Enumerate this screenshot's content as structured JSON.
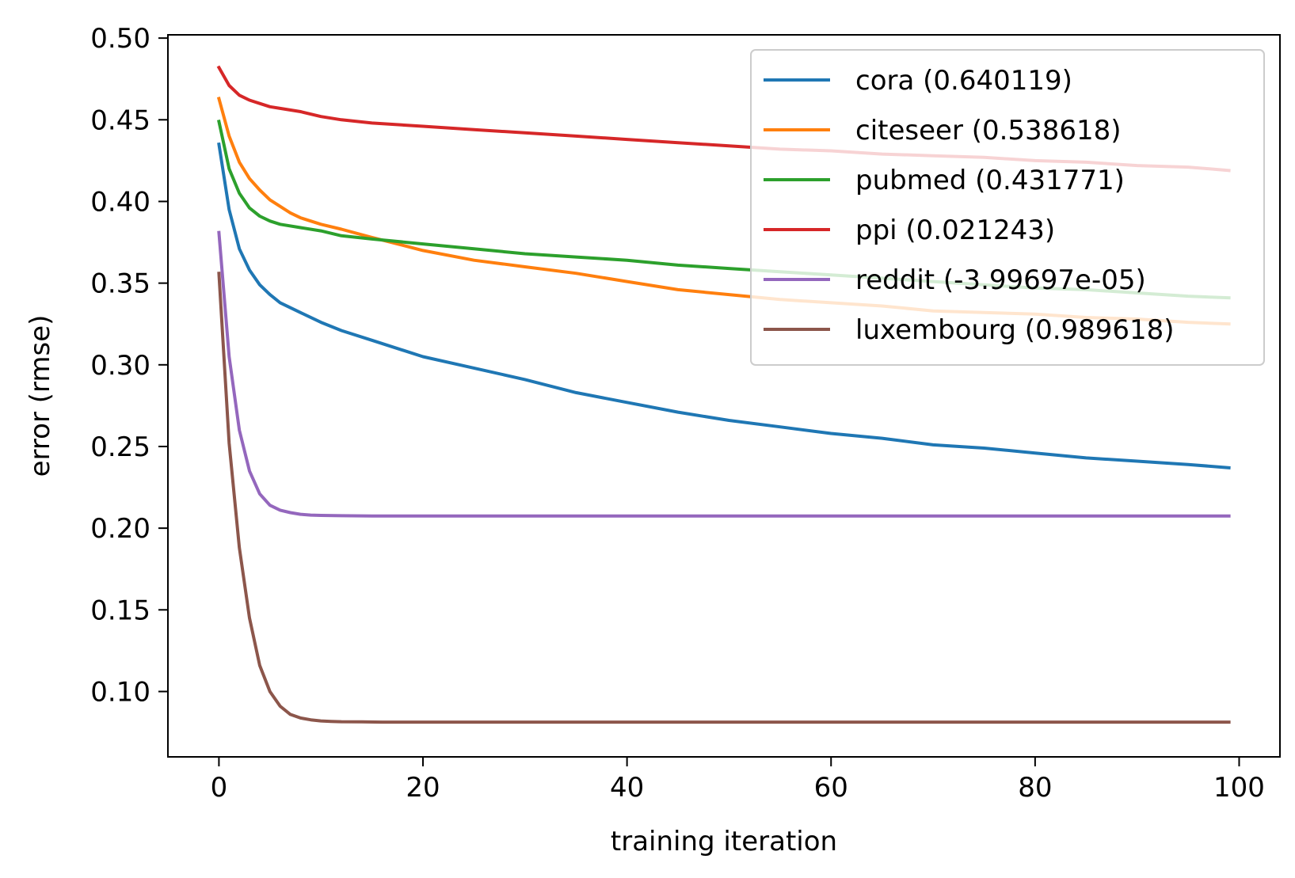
{
  "chart_data": {
    "type": "line",
    "title": "",
    "xlabel": "training iteration",
    "ylabel": "error (rmse)",
    "xlim": [
      -5,
      104
    ],
    "ylim": [
      0.06,
      0.502
    ],
    "xticks": [
      0,
      20,
      40,
      60,
      80,
      100
    ],
    "xtick_labels": [
      "0",
      "20",
      "40",
      "60",
      "80",
      "100"
    ],
    "yticks": [
      0.1,
      0.15,
      0.2,
      0.25,
      0.3,
      0.35,
      0.4,
      0.45,
      0.5
    ],
    "ytick_labels": [
      "0.10",
      "0.15",
      "0.20",
      "0.25",
      "0.30",
      "0.35",
      "0.40",
      "0.45",
      "0.50"
    ],
    "grid": false,
    "legend_position": "top-right",
    "series": [
      {
        "name": "cora (0.640119)",
        "color": "#1f77b4",
        "x": [
          0,
          1,
          2,
          3,
          4,
          5,
          6,
          8,
          10,
          12,
          15,
          20,
          25,
          30,
          35,
          40,
          45,
          50,
          55,
          60,
          65,
          70,
          75,
          80,
          85,
          90,
          95,
          99
        ],
        "y": [
          0.435,
          0.395,
          0.371,
          0.358,
          0.349,
          0.343,
          0.338,
          0.332,
          0.326,
          0.321,
          0.315,
          0.305,
          0.298,
          0.291,
          0.283,
          0.277,
          0.271,
          0.266,
          0.262,
          0.258,
          0.255,
          0.251,
          0.249,
          0.246,
          0.243,
          0.241,
          0.239,
          0.237
        ]
      },
      {
        "name": "citeseer (0.538618)",
        "color": "#ff7f0e",
        "x": [
          0,
          1,
          2,
          3,
          4,
          5,
          6,
          7,
          8,
          10,
          12,
          15,
          20,
          25,
          30,
          35,
          40,
          45,
          50,
          55,
          60,
          65,
          70,
          75,
          80,
          85,
          90,
          95,
          99
        ],
        "y": [
          0.463,
          0.44,
          0.424,
          0.414,
          0.407,
          0.401,
          0.397,
          0.393,
          0.39,
          0.386,
          0.383,
          0.378,
          0.37,
          0.364,
          0.36,
          0.356,
          0.351,
          0.346,
          0.343,
          0.34,
          0.338,
          0.336,
          0.333,
          0.332,
          0.331,
          0.329,
          0.328,
          0.326,
          0.325
        ]
      },
      {
        "name": "pubmed (0.431771)",
        "color": "#2ca02c",
        "x": [
          0,
          1,
          2,
          3,
          4,
          5,
          6,
          8,
          10,
          12,
          15,
          20,
          25,
          30,
          35,
          40,
          45,
          50,
          55,
          60,
          65,
          70,
          75,
          80,
          85,
          90,
          95,
          99
        ],
        "y": [
          0.449,
          0.42,
          0.405,
          0.396,
          0.391,
          0.388,
          0.386,
          0.384,
          0.382,
          0.379,
          0.377,
          0.374,
          0.371,
          0.368,
          0.366,
          0.364,
          0.361,
          0.359,
          0.357,
          0.355,
          0.353,
          0.351,
          0.349,
          0.347,
          0.346,
          0.344,
          0.342,
          0.341
        ]
      },
      {
        "name": "ppi (0.021243)",
        "color": "#d62728",
        "x": [
          0,
          1,
          2,
          3,
          4,
          5,
          6,
          8,
          10,
          12,
          15,
          20,
          25,
          30,
          35,
          40,
          45,
          50,
          55,
          60,
          65,
          70,
          75,
          80,
          85,
          90,
          95,
          99
        ],
        "y": [
          0.482,
          0.471,
          0.465,
          0.462,
          0.46,
          0.458,
          0.457,
          0.455,
          0.452,
          0.45,
          0.448,
          0.446,
          0.444,
          0.442,
          0.44,
          0.438,
          0.436,
          0.434,
          0.432,
          0.431,
          0.429,
          0.428,
          0.427,
          0.425,
          0.424,
          0.422,
          0.421,
          0.419
        ]
      },
      {
        "name": "reddit (-3.99697e-05)",
        "color": "#9467bd",
        "x": [
          0,
          1,
          2,
          3,
          4,
          5,
          6,
          7,
          8,
          9,
          10,
          12,
          15,
          20,
          40,
          60,
          80,
          99
        ],
        "y": [
          0.381,
          0.305,
          0.26,
          0.235,
          0.221,
          0.214,
          0.211,
          0.2095,
          0.2085,
          0.208,
          0.2078,
          0.2076,
          0.2075,
          0.2075,
          0.2075,
          0.2075,
          0.2075,
          0.2075
        ]
      },
      {
        "name": "luxembourg (0.989618)",
        "color": "#8c564b",
        "x": [
          0,
          1,
          2,
          3,
          4,
          5,
          6,
          7,
          8,
          9,
          10,
          11,
          12,
          14,
          16,
          20,
          40,
          60,
          80,
          99
        ],
        "y": [
          0.356,
          0.252,
          0.188,
          0.145,
          0.116,
          0.1,
          0.091,
          0.086,
          0.0838,
          0.0827,
          0.082,
          0.0817,
          0.0815,
          0.0814,
          0.0813,
          0.0813,
          0.0813,
          0.0813,
          0.0813,
          0.0813
        ]
      }
    ]
  }
}
